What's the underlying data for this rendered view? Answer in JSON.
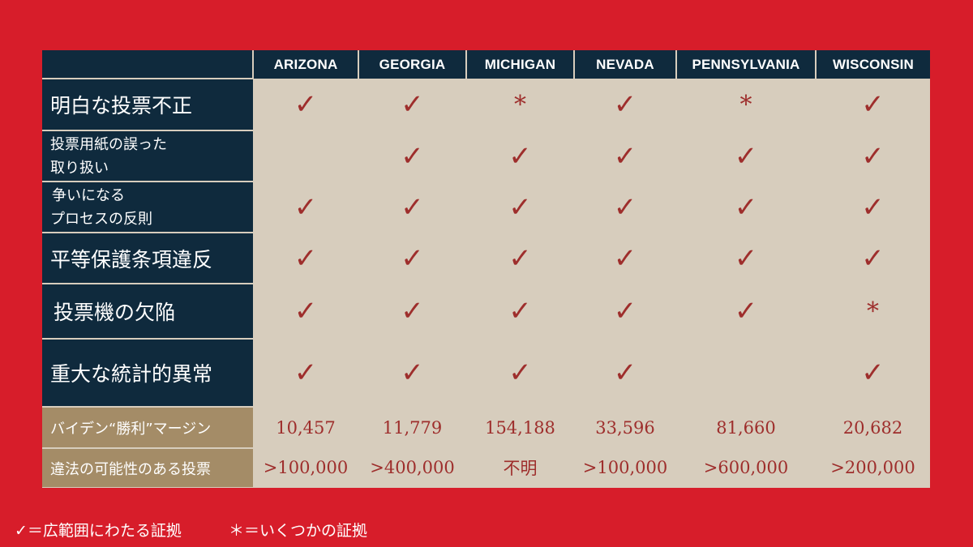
{
  "columns": [
    "ARIZONA",
    "GEORGIA",
    "MICHIGAN",
    "NEVADA",
    "PENNSYLVANIA",
    "WISCONSIN"
  ],
  "rows": [
    {
      "label1": "明白な投票不正",
      "label2": "",
      "marks": [
        "✓",
        "✓",
        "*",
        "✓",
        "*",
        "✓"
      ]
    },
    {
      "label1": "投票用紙の誤った",
      "label2": "取り扱い",
      "marks": [
        "",
        "✓",
        "✓",
        "✓",
        "✓",
        "✓"
      ]
    },
    {
      "label1": "争いになる",
      "label2": "プロセスの反則",
      "marks": [
        "✓",
        "✓",
        "✓",
        "✓",
        "✓",
        "✓"
      ]
    },
    {
      "label1": "平等保護条項違反",
      "label2": "",
      "marks": [
        "✓",
        "✓",
        "✓",
        "✓",
        "✓",
        "✓"
      ]
    },
    {
      "label1": "投票機の欠陥",
      "label2": "",
      "marks": [
        "✓",
        "✓",
        "✓",
        "✓",
        "✓",
        "*"
      ]
    },
    {
      "label1": "重大な統計的異常",
      "label2": "",
      "marks": [
        "✓",
        "✓",
        "✓",
        "✓",
        "",
        "✓"
      ]
    }
  ],
  "margin_row": {
    "label": "バイデン“勝利”マージン",
    "values": [
      "10,457",
      "11,779",
      "154,188",
      "33,596",
      "81,660",
      "20,682"
    ]
  },
  "illegal_row": {
    "label": "違法の可能性のある投票",
    "values": [
      ">100,000",
      ">400,000",
      "不明",
      ">100,000",
      ">600,000",
      ">200,000"
    ]
  },
  "legend": {
    "check": "✓＝広範囲にわたる証拠",
    "star": "＊＝いくつかの証拠"
  },
  "colors": {
    "background": "#d71d2a",
    "navy": "#0f2a3d",
    "tan": "#a48c67",
    "board": "#d7cdbd",
    "mark": "#9e2e2c"
  }
}
